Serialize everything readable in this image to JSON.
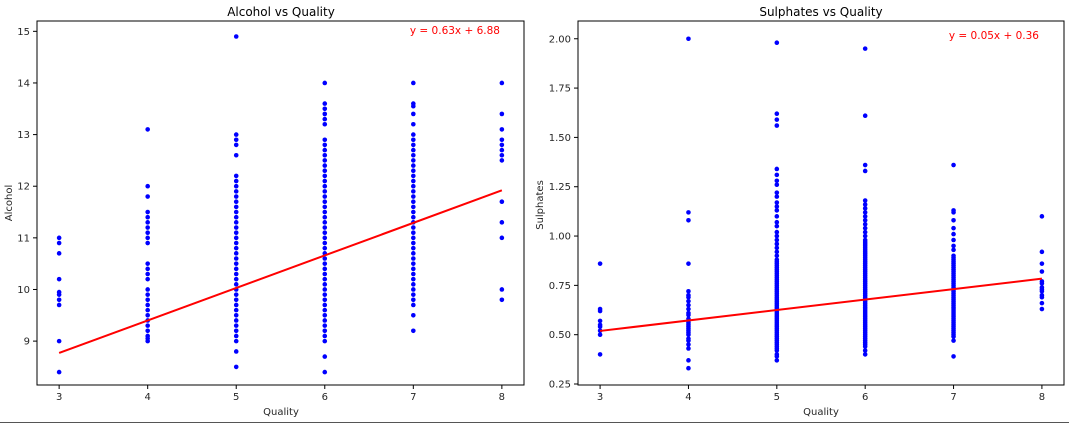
{
  "chart_data": [
    {
      "type": "scatter",
      "title": "Alcohol vs Quality",
      "xlabel": "Quality",
      "ylabel": "Alcohol",
      "xlim": [
        2.75,
        8.25
      ],
      "ylim": [
        8.15,
        15.2
      ],
      "xticks": [
        3,
        4,
        5,
        6,
        7,
        8
      ],
      "yticks": [
        9,
        10,
        11,
        12,
        13,
        14,
        15
      ],
      "tick_decimals": 0,
      "point_color": "#0000ff",
      "line_color": "#ff0000",
      "equation": "y = 0.63x + 6.88",
      "fit": {
        "slope": 0.63,
        "intercept": 6.88
      },
      "points": {
        "3": [
          8.4,
          9.0,
          9.7,
          9.8,
          9.9,
          9.95,
          10.2,
          10.7,
          10.9,
          11.0
        ],
        "4": [
          9.0,
          9.05,
          9.1,
          9.2,
          9.3,
          9.4,
          9.5,
          9.6,
          9.7,
          9.8,
          9.9,
          10.0,
          10.2,
          10.3,
          10.4,
          10.5,
          10.9,
          11.0,
          11.1,
          11.2,
          11.3,
          11.4,
          11.5,
          11.8,
          12.0,
          13.1
        ],
        "5": [
          8.5,
          8.8,
          9.0,
          9.1,
          9.2,
          9.3,
          9.4,
          9.5,
          9.6,
          9.7,
          9.8,
          9.9,
          10.0,
          10.1,
          10.2,
          10.3,
          10.4,
          10.5,
          10.6,
          10.7,
          10.8,
          10.9,
          11.0,
          11.1,
          11.2,
          11.3,
          11.4,
          11.5,
          11.6,
          11.7,
          11.8,
          11.9,
          12.0,
          12.1,
          12.2,
          12.6,
          12.8,
          12.9,
          13.0,
          14.9
        ],
        "6": [
          8.4,
          8.7,
          9.0,
          9.1,
          9.2,
          9.3,
          9.4,
          9.5,
          9.6,
          9.7,
          9.8,
          9.9,
          10.0,
          10.1,
          10.2,
          10.3,
          10.4,
          10.5,
          10.6,
          10.7,
          10.8,
          10.9,
          11.0,
          11.1,
          11.2,
          11.3,
          11.4,
          11.5,
          11.6,
          11.7,
          11.8,
          11.9,
          12.0,
          12.1,
          12.2,
          12.3,
          12.4,
          12.5,
          12.6,
          12.7,
          12.8,
          12.9,
          13.2,
          13.3,
          13.4,
          13.5,
          13.6,
          14.0
        ],
        "7": [
          9.2,
          9.5,
          9.7,
          9.8,
          9.9,
          10.0,
          10.1,
          10.2,
          10.3,
          10.4,
          10.5,
          10.6,
          10.7,
          10.8,
          10.9,
          11.0,
          11.1,
          11.2,
          11.3,
          11.4,
          11.5,
          11.6,
          11.7,
          11.8,
          11.9,
          12.0,
          12.1,
          12.2,
          12.3,
          12.4,
          12.5,
          12.6,
          12.7,
          12.8,
          12.9,
          13.0,
          13.2,
          13.4,
          13.55,
          13.6,
          14.0
        ],
        "8": [
          9.8,
          10.0,
          11.0,
          11.3,
          11.7,
          12.5,
          12.6,
          12.7,
          12.8,
          12.9,
          13.1,
          13.4,
          14.0
        ]
      }
    },
    {
      "type": "scatter",
      "title": "Sulphates vs Quality",
      "xlabel": "Quality",
      "ylabel": "Sulphates",
      "xlim": [
        2.75,
        8.25
      ],
      "ylim": [
        0.245,
        2.09
      ],
      "xticks": [
        3,
        4,
        5,
        6,
        7,
        8
      ],
      "yticks": [
        0.25,
        0.5,
        0.75,
        1.0,
        1.25,
        1.5,
        1.75,
        2.0
      ],
      "tick_decimals": 2,
      "point_color": "#0000ff",
      "line_color": "#ff0000",
      "equation": "y = 0.05x + 0.36",
      "fit": {
        "slope": 0.053,
        "intercept": 0.36
      },
      "points": {
        "3": [
          0.4,
          0.5,
          0.52,
          0.54,
          0.55,
          0.57,
          0.62,
          0.63,
          0.86
        ],
        "4": [
          0.33,
          0.37,
          0.43,
          0.45,
          0.47,
          0.48,
          0.5,
          0.51,
          0.52,
          0.53,
          0.54,
          0.55,
          0.56,
          0.57,
          0.58,
          0.6,
          0.61,
          0.63,
          0.65,
          0.67,
          0.69,
          0.7,
          0.72,
          0.86,
          1.08,
          1.12,
          2.0
        ],
        "5": [
          0.37,
          0.39,
          0.4,
          0.42,
          0.43,
          0.44,
          0.45,
          0.46,
          0.47,
          0.48,
          0.49,
          0.5,
          0.51,
          0.52,
          0.53,
          0.54,
          0.55,
          0.56,
          0.57,
          0.58,
          0.59,
          0.6,
          0.61,
          0.62,
          0.63,
          0.64,
          0.65,
          0.66,
          0.67,
          0.68,
          0.69,
          0.7,
          0.71,
          0.72,
          0.73,
          0.74,
          0.75,
          0.76,
          0.77,
          0.78,
          0.79,
          0.8,
          0.81,
          0.82,
          0.83,
          0.84,
          0.85,
          0.86,
          0.87,
          0.88,
          0.9,
          0.92,
          0.94,
          0.96,
          0.98,
          1.0,
          1.02,
          1.05,
          1.07,
          1.1,
          1.13,
          1.15,
          1.17,
          1.2,
          1.22,
          1.26,
          1.28,
          1.31,
          1.34,
          1.56,
          1.59,
          1.62,
          1.98
        ],
        "6": [
          0.4,
          0.42,
          0.44,
          0.45,
          0.46,
          0.47,
          0.48,
          0.49,
          0.5,
          0.51,
          0.52,
          0.53,
          0.54,
          0.55,
          0.56,
          0.57,
          0.58,
          0.59,
          0.6,
          0.61,
          0.62,
          0.63,
          0.64,
          0.65,
          0.66,
          0.67,
          0.68,
          0.69,
          0.7,
          0.71,
          0.72,
          0.73,
          0.74,
          0.75,
          0.76,
          0.77,
          0.78,
          0.79,
          0.8,
          0.81,
          0.82,
          0.83,
          0.84,
          0.85,
          0.86,
          0.87,
          0.88,
          0.89,
          0.9,
          0.91,
          0.92,
          0.93,
          0.94,
          0.95,
          0.96,
          0.97,
          0.98,
          1.0,
          1.02,
          1.04,
          1.06,
          1.08,
          1.1,
          1.12,
          1.14,
          1.16,
          1.18,
          1.33,
          1.36,
          1.61,
          1.95
        ],
        "7": [
          0.39,
          0.47,
          0.49,
          0.5,
          0.51,
          0.52,
          0.53,
          0.54,
          0.55,
          0.56,
          0.57,
          0.58,
          0.59,
          0.6,
          0.61,
          0.62,
          0.63,
          0.64,
          0.65,
          0.66,
          0.67,
          0.68,
          0.69,
          0.7,
          0.71,
          0.72,
          0.73,
          0.74,
          0.75,
          0.76,
          0.77,
          0.78,
          0.79,
          0.8,
          0.81,
          0.82,
          0.83,
          0.84,
          0.85,
          0.86,
          0.87,
          0.88,
          0.89,
          0.9,
          0.93,
          0.95,
          0.98,
          1.01,
          1.04,
          1.08,
          1.12,
          1.13,
          1.36
        ],
        "8": [
          0.63,
          0.66,
          0.69,
          0.7,
          0.72,
          0.73,
          0.74,
          0.76,
          0.77,
          0.82,
          0.86,
          0.92,
          1.1
        ]
      }
    }
  ]
}
